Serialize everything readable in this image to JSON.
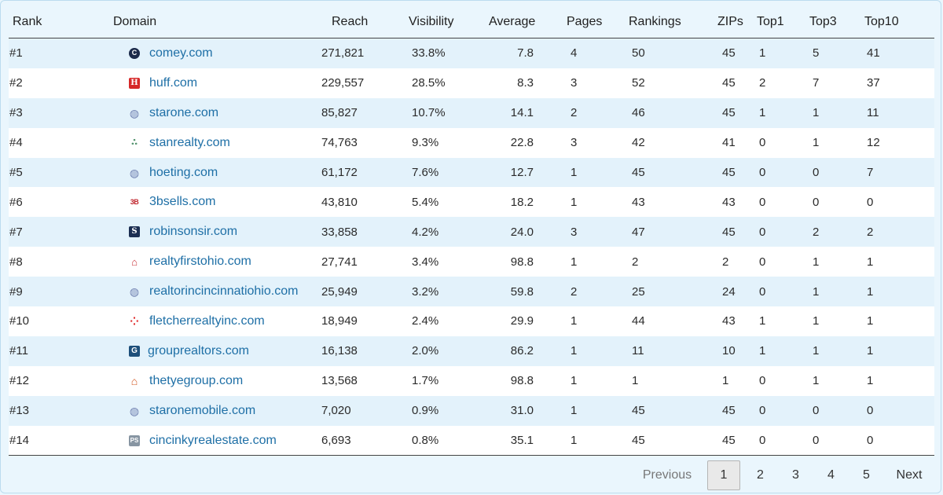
{
  "columns": {
    "rank": "Rank",
    "domain": "Domain",
    "reach": "Reach",
    "visibility": "Visibility",
    "average": "Average",
    "pages": "Pages",
    "rankings": "Rankings",
    "zips": "ZIPs",
    "top1": "Top1",
    "top3": "Top3",
    "top10": "Top10"
  },
  "rows": [
    {
      "rank": "#1",
      "favicon": "comey-logo-icon",
      "glyph": "C",
      "domain": "comey.com",
      "reach": "271,821",
      "visibility": "33.8%",
      "average": "7.8",
      "pages": "4",
      "rankings": "50",
      "zips": "45",
      "top1": "1",
      "top3": "5",
      "top10": "41"
    },
    {
      "rank": "#2",
      "favicon": "huff-logo-icon",
      "glyph": "H",
      "domain": "huff.com",
      "reach": "229,557",
      "visibility": "28.5%",
      "average": "8.3",
      "pages": "3",
      "rankings": "52",
      "zips": "45",
      "top1": "2",
      "top3": "7",
      "top10": "37"
    },
    {
      "rank": "#3",
      "favicon": "globe-icon",
      "glyph": "◍",
      "domain": "starone.com",
      "reach": "85,827",
      "visibility": "10.7%",
      "average": "14.1",
      "pages": "2",
      "rankings": "46",
      "zips": "45",
      "top1": "1",
      "top3": "1",
      "top10": "11"
    },
    {
      "rank": "#4",
      "favicon": "stanrealty-logo-icon",
      "glyph": "ஃ",
      "domain": "stanrealty.com",
      "reach": "74,763",
      "visibility": "9.3%",
      "average": "22.8",
      "pages": "3",
      "rankings": "42",
      "zips": "41",
      "top1": "0",
      "top3": "1",
      "top10": "12"
    },
    {
      "rank": "#5",
      "favicon": "globe-icon",
      "glyph": "◍",
      "domain": "hoeting.com",
      "reach": "61,172",
      "visibility": "7.6%",
      "average": "12.7",
      "pages": "1",
      "rankings": "45",
      "zips": "45",
      "top1": "0",
      "top3": "0",
      "top10": "7"
    },
    {
      "rank": "#6",
      "favicon": "3bsells-logo-icon",
      "glyph": "3B",
      "domain": "3bsells.com",
      "reach": "43,810",
      "visibility": "5.4%",
      "average": "18.2",
      "pages": "1",
      "rankings": "43",
      "zips": "43",
      "top1": "0",
      "top3": "0",
      "top10": "0"
    },
    {
      "rank": "#7",
      "favicon": "robinsonsir-logo-icon",
      "glyph": "S",
      "domain": "robinsonsir.com",
      "reach": "33,858",
      "visibility": "4.2%",
      "average": "24.0",
      "pages": "3",
      "rankings": "47",
      "zips": "45",
      "top1": "0",
      "top3": "2",
      "top10": "2"
    },
    {
      "rank": "#8",
      "favicon": "realtyfirst-logo-icon",
      "glyph": "⌂",
      "domain": "realtyfirstohio.com",
      "reach": "27,741",
      "visibility": "3.4%",
      "average": "98.8",
      "pages": "1",
      "rankings": "2",
      "zips": "2",
      "top1": "0",
      "top3": "1",
      "top10": "1"
    },
    {
      "rank": "#9",
      "favicon": "globe-icon",
      "glyph": "◍",
      "domain": "realtorincincinnatiohio.com",
      "reach": "25,949",
      "visibility": "3.2%",
      "average": "59.8",
      "pages": "2",
      "rankings": "25",
      "zips": "24",
      "top1": "0",
      "top3": "1",
      "top10": "1"
    },
    {
      "rank": "#10",
      "favicon": "fletcher-logo-icon",
      "glyph": "⁘",
      "domain": "fletcherrealtyinc.com",
      "reach": "18,949",
      "visibility": "2.4%",
      "average": "29.9",
      "pages": "1",
      "rankings": "44",
      "zips": "43",
      "top1": "1",
      "top3": "1",
      "top10": "1"
    },
    {
      "rank": "#11",
      "favicon": "grouprealtors-logo-icon",
      "glyph": "G",
      "domain": "grouprealtors.com",
      "reach": "16,138",
      "visibility": "2.0%",
      "average": "86.2",
      "pages": "1",
      "rankings": "11",
      "zips": "10",
      "top1": "1",
      "top3": "1",
      "top10": "1"
    },
    {
      "rank": "#12",
      "favicon": "house-icon",
      "glyph": "⌂",
      "domain": "thetyegroup.com",
      "reach": "13,568",
      "visibility": "1.7%",
      "average": "98.8",
      "pages": "1",
      "rankings": "1",
      "zips": "1",
      "top1": "0",
      "top3": "1",
      "top10": "1"
    },
    {
      "rank": "#13",
      "favicon": "globe-icon",
      "glyph": "◍",
      "domain": "staronemobile.com",
      "reach": "7,020",
      "visibility": "0.9%",
      "average": "31.0",
      "pages": "1",
      "rankings": "45",
      "zips": "45",
      "top1": "0",
      "top3": "0",
      "top10": "0"
    },
    {
      "rank": "#14",
      "favicon": "ps-logo-icon",
      "glyph": "PS",
      "domain": "cincinkyrealestate.com",
      "reach": "6,693",
      "visibility": "0.8%",
      "average": "35.1",
      "pages": "1",
      "rankings": "45",
      "zips": "45",
      "top1": "0",
      "top3": "0",
      "top10": "0"
    }
  ],
  "pagination": {
    "previous": "Previous",
    "pages": [
      "1",
      "2",
      "3",
      "4",
      "5"
    ],
    "current": "1",
    "next": "Next"
  },
  "colors": {
    "link": "#1e6fa6",
    "row_alt": "#e3f2fb",
    "background": "#eaf6fd"
  }
}
